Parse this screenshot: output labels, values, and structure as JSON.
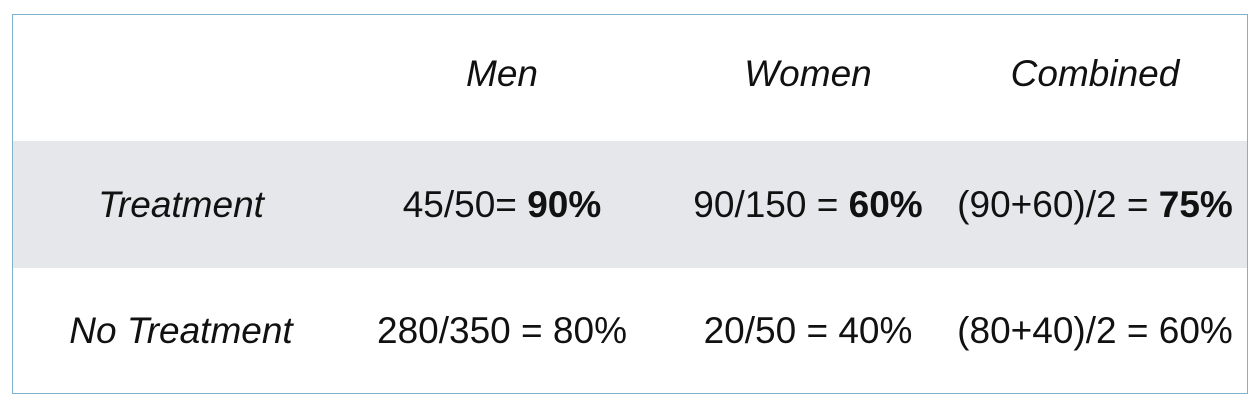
{
  "table": {
    "columns": [
      "",
      "Men",
      "Women",
      "Combined"
    ],
    "rows": [
      {
        "label": "Treatment",
        "cells": [
          {
            "text": "45/50= ",
            "bold": "90%"
          },
          {
            "text": "90/150 = ",
            "bold": "60%"
          },
          {
            "text": "(90+60)/2 = ",
            "bold": "75%"
          }
        ]
      },
      {
        "label": "No Treatment",
        "cells": [
          {
            "text": "280/350 = 80%"
          },
          {
            "text": "20/50 = 40%"
          },
          {
            "text": "(80+40)/2 = 60%"
          }
        ]
      }
    ]
  },
  "colors": {
    "border": "#7fb3cc",
    "shaded_row": "#e6e7ea",
    "text": "#111111"
  }
}
